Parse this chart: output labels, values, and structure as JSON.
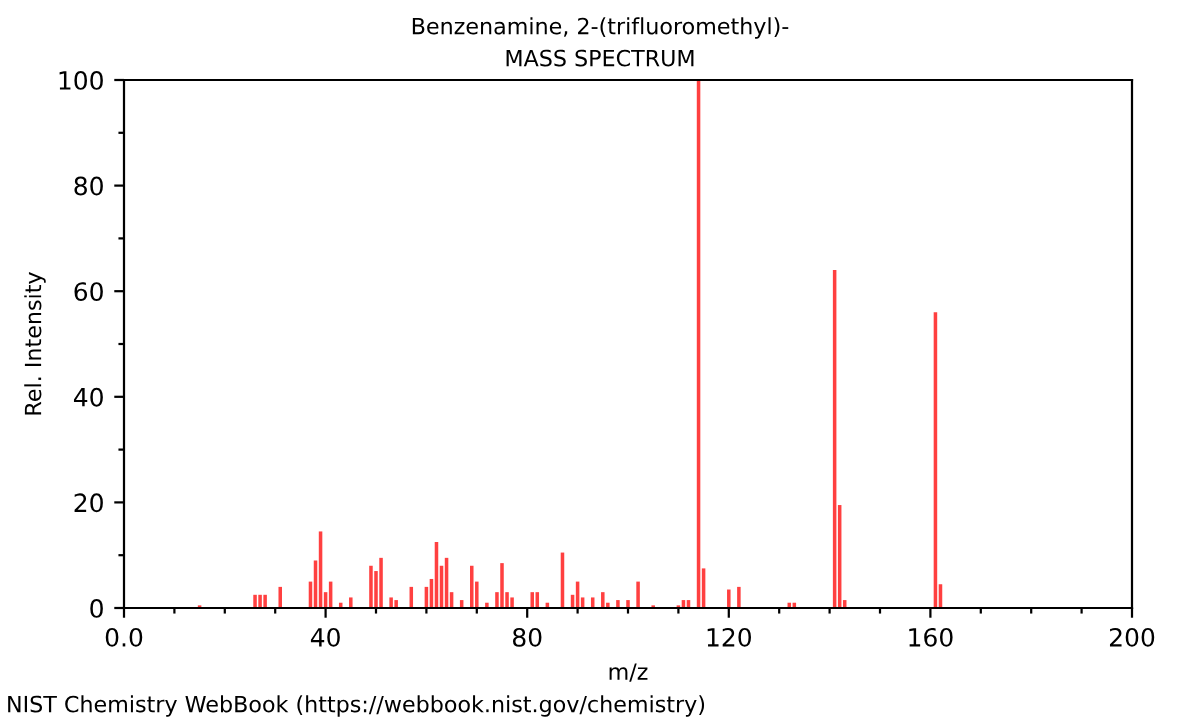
{
  "chart_data": {
    "type": "bar",
    "title": "Benzenamine, 2-(trifluoromethyl)-",
    "subtitle": "MASS SPECTRUM",
    "xlabel": "m/z",
    "ylabel": "Rel. Intensity",
    "x": [
      15,
      26,
      27,
      28,
      31,
      37,
      38,
      39,
      40,
      41,
      43,
      45,
      49,
      50,
      51,
      53,
      54,
      57,
      60,
      61,
      62,
      63,
      64,
      65,
      67,
      69,
      70,
      72,
      74,
      75,
      76,
      77,
      81,
      82,
      84,
      87,
      89,
      90,
      91,
      93,
      95,
      96,
      98,
      100,
      102,
      105,
      110,
      111,
      112,
      114,
      115,
      120,
      122,
      132,
      133,
      141,
      142,
      143,
      161,
      162
    ],
    "values": [
      0.5,
      2.5,
      2.5,
      2.5,
      4,
      5,
      9,
      14.5,
      3,
      5,
      1,
      2,
      8,
      7,
      9.5,
      2,
      1.5,
      4,
      4,
      5.5,
      12.5,
      8,
      9.5,
      3,
      1.5,
      8,
      5,
      1,
      3,
      8.5,
      3,
      2,
      3,
      3,
      1,
      10.5,
      2.5,
      5,
      2,
      2,
      3,
      1,
      1.5,
      1.5,
      5,
      0.5,
      0.5,
      1.5,
      1.5,
      100,
      7.5,
      3.5,
      4,
      1,
      1,
      64,
      19.5,
      1.5,
      56,
      4.5
    ],
    "color": "#ff4040",
    "xlim": [
      0,
      200
    ],
    "ylim": [
      0,
      100
    ],
    "xticks": [
      {
        "value": 0,
        "label": "0.0"
      },
      {
        "value": 10,
        "label": null
      },
      {
        "value": 20,
        "label": null
      },
      {
        "value": 30,
        "label": null
      },
      {
        "value": 40,
        "label": "40"
      },
      {
        "value": 50,
        "label": null
      },
      {
        "value": 60,
        "label": null
      },
      {
        "value": 70,
        "label": null
      },
      {
        "value": 80,
        "label": "80"
      },
      {
        "value": 90,
        "label": null
      },
      {
        "value": 100,
        "label": null
      },
      {
        "value": 110,
        "label": null
      },
      {
        "value": 120,
        "label": "120"
      },
      {
        "value": 130,
        "label": null
      },
      {
        "value": 140,
        "label": null
      },
      {
        "value": 150,
        "label": null
      },
      {
        "value": 160,
        "label": "160"
      },
      {
        "value": 170,
        "label": null
      },
      {
        "value": 180,
        "label": null
      },
      {
        "value": 190,
        "label": null
      },
      {
        "value": 200,
        "label": "200"
      }
    ],
    "yticks": [
      0,
      {
        "value": 10,
        "label": null
      },
      20,
      {
        "value": 30,
        "label": null
      },
      40,
      {
        "value": 50,
        "label": null
      },
      60,
      {
        "value": 70,
        "label": null
      },
      80,
      {
        "value": 90,
        "label": null
      },
      100
    ],
    "grid": false,
    "annotations": [
      "NIST Chemistry WebBook (https://webbook.nist.gov/chemistry)"
    ]
  }
}
